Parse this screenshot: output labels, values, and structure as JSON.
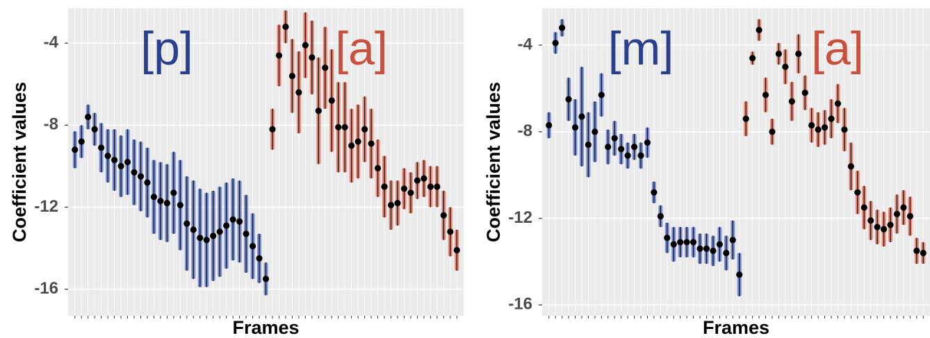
{
  "chart_data": [
    {
      "type": "errorbar",
      "y_label": "Coefficient values",
      "x_label": "Frames",
      "ylim": [
        -17.3,
        -2.3
      ],
      "yticks": [
        -4,
        -8,
        -12,
        -16
      ],
      "grid": true,
      "series": [
        {
          "name": "[p]",
          "color": "#5470d0",
          "label_color": "#2b3f8f",
          "values": [
            -9.2,
            -8.8,
            -7.6,
            -8.2,
            -9.1,
            -9.5,
            -9.7,
            -10,
            -9.8,
            -10.3,
            -10.5,
            -10.8,
            -11.5,
            -11.7,
            -11.8,
            -11.3,
            -11.9,
            -12.8,
            -13.1,
            -13.5,
            -13.6,
            -13.4,
            -13.2,
            -12.9,
            -12.6,
            -12.7,
            -13.3,
            -13.9,
            -14.5,
            -15.5
          ],
          "errors": [
            0.9,
            0.8,
            0.6,
            0.8,
            1.2,
            1.3,
            1.5,
            1.5,
            1.6,
            1.6,
            1.7,
            1.7,
            1.8,
            1.9,
            1.9,
            2.0,
            2.2,
            2.3,
            2.4,
            2.4,
            2.3,
            2.2,
            2.2,
            2.1,
            2.0,
            2.0,
            1.9,
            1.6,
            1.2,
            0.8
          ]
        },
        {
          "name": "[a]",
          "color": "#e8684e",
          "label_color": "#c9503f",
          "values": [
            -8.2,
            -4.6,
            -3.2,
            -5.6,
            -6.4,
            -4.1,
            -4.7,
            -7.3,
            -5.2,
            -6.8,
            -8.1,
            -8.1,
            -9.0,
            -8.8,
            -8.2,
            -8.9,
            -10.1,
            -11.0,
            -11.9,
            -11.8,
            -11.1,
            -11.3,
            -10.7,
            -10.6,
            -11.0,
            -11.0,
            -12.4,
            -13.2,
            -14.1
          ],
          "errors": [
            1.0,
            1.5,
            0.8,
            1.8,
            2.0,
            1.6,
            1.8,
            2.6,
            2.0,
            2.5,
            2.2,
            2.2,
            1.8,
            1.8,
            1.6,
            1.7,
            1.4,
            1.5,
            1.2,
            1.1,
            1.0,
            1.0,
            0.9,
            0.9,
            1.0,
            1.0,
            1.2,
            1.2,
            1.0
          ]
        }
      ]
    },
    {
      "type": "errorbar",
      "y_label": "Coefficient values",
      "x_label": "Frames",
      "ylim": [
        -16.5,
        -2.3
      ],
      "yticks": [
        -4,
        -8,
        -12,
        -16
      ],
      "grid": true,
      "series": [
        {
          "name": "[m]",
          "color": "#5470d0",
          "label_color": "#2b3f8f",
          "values": [
            -7.7,
            -3.9,
            -3.2,
            -6.5,
            -7.8,
            -7.3,
            -8.6,
            -8.0,
            -6.3,
            -8.7,
            -8.3,
            -8.8,
            -9.1,
            -8.7,
            -9.1,
            -8.5,
            -10.8,
            -11.9,
            -12.9,
            -13.2,
            -13.1,
            -13.1,
            -13.1,
            -13.4,
            -13.4,
            -13.5,
            -13.2,
            -13.6,
            -13.0,
            -14.6
          ],
          "errors": [
            0.6,
            0.5,
            0.4,
            1.0,
            1.3,
            2.3,
            1.5,
            1.4,
            1.0,
            0.8,
            0.8,
            0.7,
            0.6,
            0.6,
            0.6,
            0.7,
            0.5,
            0.5,
            0.7,
            0.8,
            0.7,
            0.7,
            0.7,
            0.7,
            0.7,
            0.7,
            0.8,
            0.8,
            0.9,
            1.0
          ]
        },
        {
          "name": "[a]",
          "color": "#e8684e",
          "label_color": "#c9503f",
          "values": [
            -7.4,
            -4.6,
            -3.3,
            -6.3,
            -8.0,
            -4.4,
            -5.0,
            -6.6,
            -4.4,
            -6.2,
            -7.7,
            -7.9,
            -7.8,
            -7.4,
            -6.7,
            -7.9,
            -9.6,
            -10.8,
            -11.5,
            -12.1,
            -12.4,
            -12.5,
            -12.3,
            -11.8,
            -11.5,
            -11.9,
            -13.5,
            -13.6
          ],
          "errors": [
            0.8,
            0.3,
            0.5,
            0.8,
            0.6,
            0.5,
            0.8,
            0.9,
            0.9,
            0.8,
            0.8,
            0.8,
            0.8,
            0.9,
            0.9,
            1.0,
            1.1,
            1.0,
            1.0,
            0.9,
            0.8,
            0.8,
            0.8,
            0.9,
            0.8,
            0.9,
            0.6,
            0.5
          ]
        }
      ]
    }
  ]
}
